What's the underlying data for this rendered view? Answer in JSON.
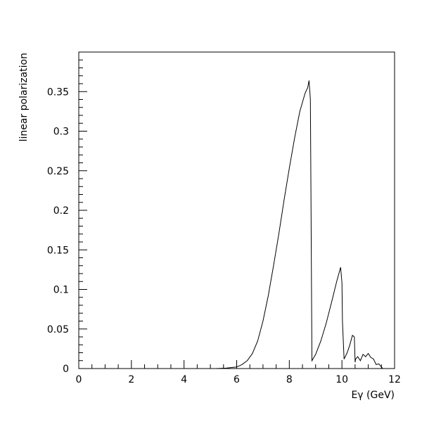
{
  "chart_data": {
    "type": "line",
    "title": "",
    "xlabel": "Eγ (GeV)",
    "ylabel": "linear polarization",
    "xlim": [
      0,
      12
    ],
    "ylim": [
      0,
      0.4
    ],
    "x_ticks": [
      0,
      2,
      4,
      6,
      8,
      10,
      12
    ],
    "x_tick_labels": [
      "0",
      "2",
      "4",
      "6",
      "8",
      "10",
      "12"
    ],
    "y_ticks": [
      0,
      0.05,
      0.1,
      0.15,
      0.2,
      0.25,
      0.3,
      0.35
    ],
    "y_tick_labels": [
      "0",
      "0.05",
      "0.1",
      "0.15",
      "0.2",
      "0.25",
      "0.3",
      "0.35"
    ],
    "grid": false,
    "line_color": "#000000",
    "series": [
      {
        "x": [
          5.2,
          5.6,
          6.0,
          6.2,
          6.4,
          6.6,
          6.8,
          7.0,
          7.2,
          7.4,
          7.6,
          7.8,
          8.0,
          8.2,
          8.4,
          8.6,
          8.7,
          8.75,
          8.8,
          8.82,
          8.86,
          9.0,
          9.2,
          9.4,
          9.6,
          9.8,
          9.95,
          10.0,
          10.02,
          10.08,
          10.2,
          10.3,
          10.4,
          10.47,
          10.5,
          10.52,
          10.6,
          10.7,
          10.8,
          10.9,
          11.0,
          11.1,
          11.2,
          11.3,
          11.4,
          11.5,
          11.55
        ],
        "y": [
          0.0,
          0.0005,
          0.002,
          0.005,
          0.01,
          0.019,
          0.035,
          0.06,
          0.092,
          0.13,
          0.17,
          0.213,
          0.253,
          0.291,
          0.325,
          0.348,
          0.355,
          0.364,
          0.34,
          0.24,
          0.01,
          0.018,
          0.035,
          0.057,
          0.083,
          0.11,
          0.128,
          0.108,
          0.06,
          0.012,
          0.02,
          0.03,
          0.042,
          0.04,
          0.008,
          0.012,
          0.015,
          0.01,
          0.018,
          0.015,
          0.019,
          0.014,
          0.012,
          0.005,
          0.006,
          0.002,
          0.0
        ]
      }
    ]
  }
}
